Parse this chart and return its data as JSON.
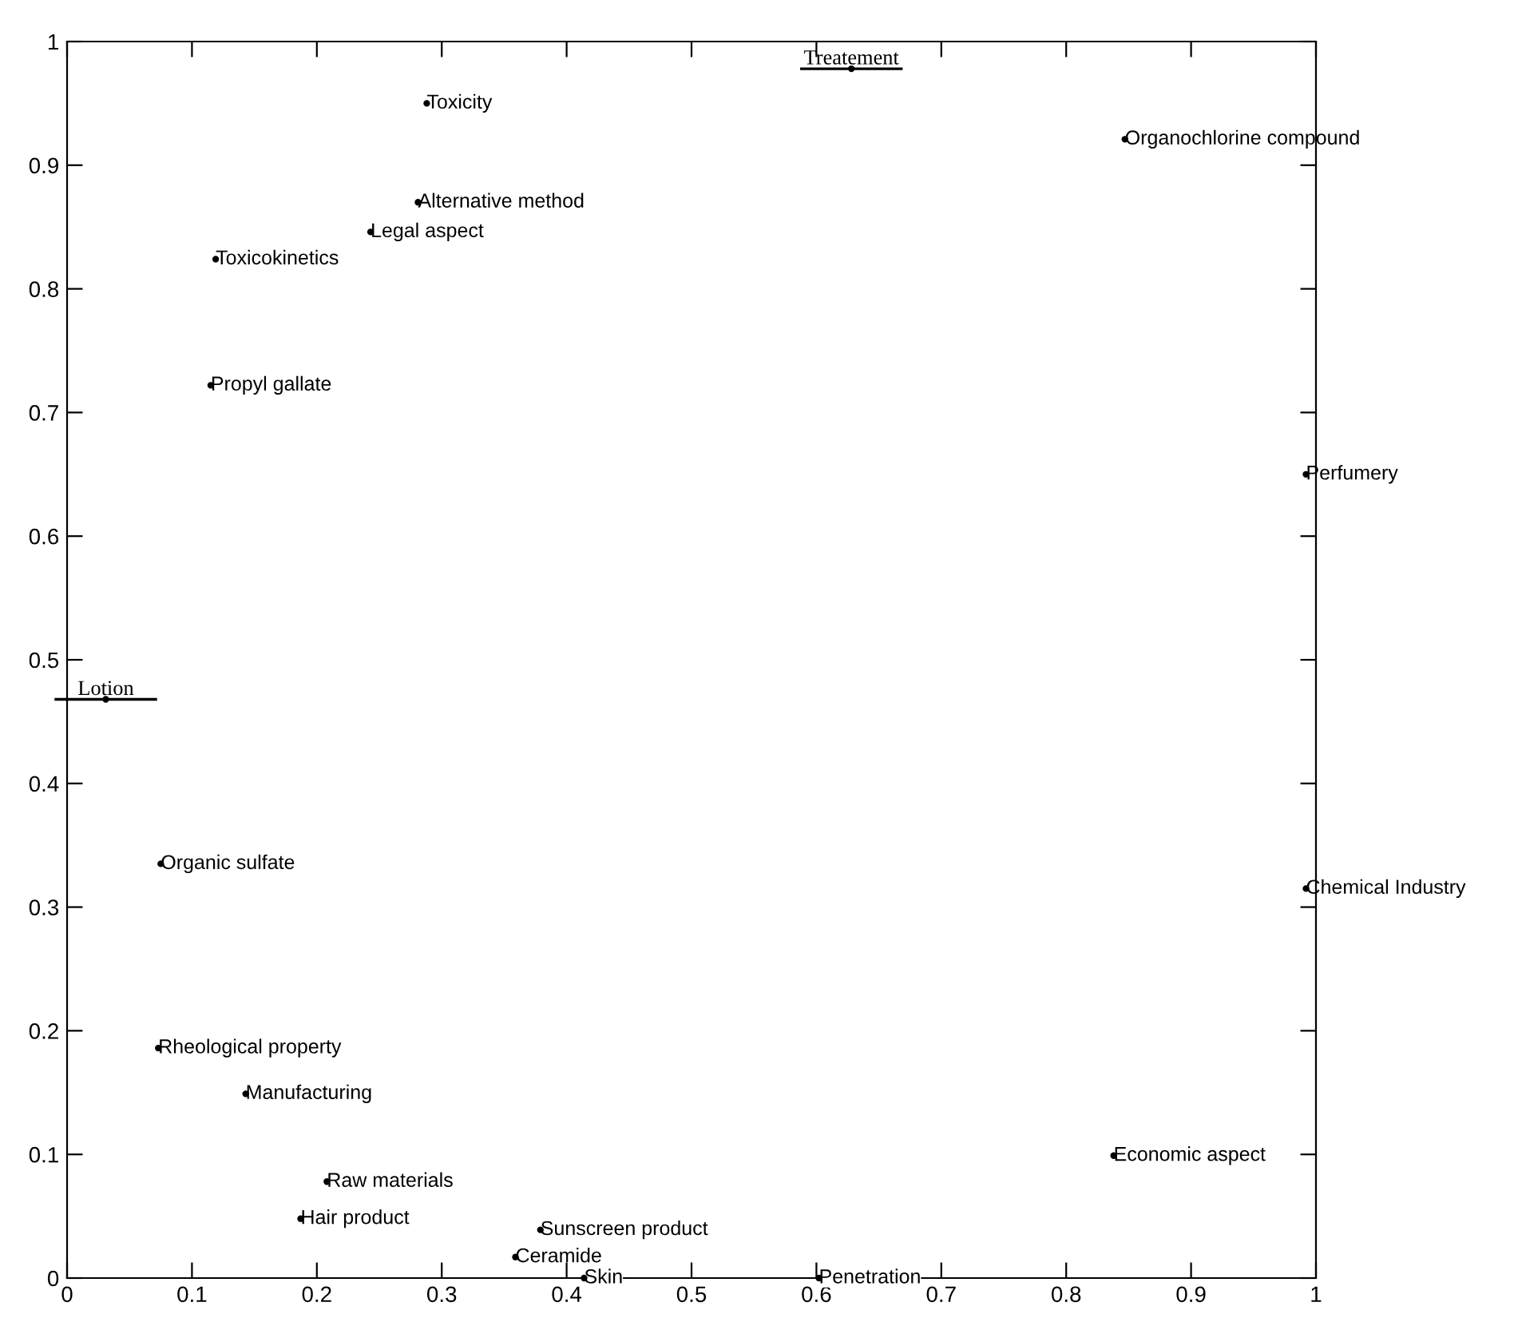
{
  "chart_data": {
    "type": "scatter",
    "marker": "circle",
    "grid": false,
    "legend": false,
    "xlim": [
      0,
      1
    ],
    "ylim": [
      0,
      1
    ],
    "xticks": [
      0,
      0.1,
      0.2,
      0.3,
      0.4,
      0.5,
      0.6,
      0.7,
      0.8,
      0.9,
      1
    ],
    "yticks": [
      0,
      0.1,
      0.2,
      0.3,
      0.4,
      0.5,
      0.6,
      0.7,
      0.8,
      0.9,
      1
    ],
    "series": [
      {
        "color": "#000000",
        "x": [
          0.288,
          0.281,
          0.243,
          0.119,
          0.115,
          0.847,
          0.992,
          0.075,
          0.992,
          0.073,
          0.143,
          0.838,
          0.208,
          0.187,
          0.379,
          0.359,
          0.414,
          0.602
        ],
        "values": [
          0.95,
          0.87,
          0.846,
          0.824,
          0.722,
          0.921,
          0.65,
          0.335,
          0.315,
          0.186,
          0.149,
          0.099,
          0.078,
          0.048,
          0.039,
          0.017,
          0,
          0
        ],
        "value_labels": [
          "Toxicity",
          "Alternative method",
          "Legal aspect",
          "Toxicokinetics",
          "Propyl gallate",
          "Organochlorine compound",
          "Perfumery",
          "Organic sulfate",
          "Chemical Industry",
          "Rheological property",
          "Manufacturing",
          "Economic aspect",
          "Raw materials",
          "Hair product",
          "Sunscreen product",
          "Ceramide",
          "Skin",
          "Penetration"
        ]
      },
      {
        "color": "#000000",
        "x": [
          0.628,
          0.031
        ],
        "values": [
          0.978,
          0.468
        ],
        "value_labels": [
          "Treatement",
          "Lotion"
        ]
      }
    ]
  }
}
